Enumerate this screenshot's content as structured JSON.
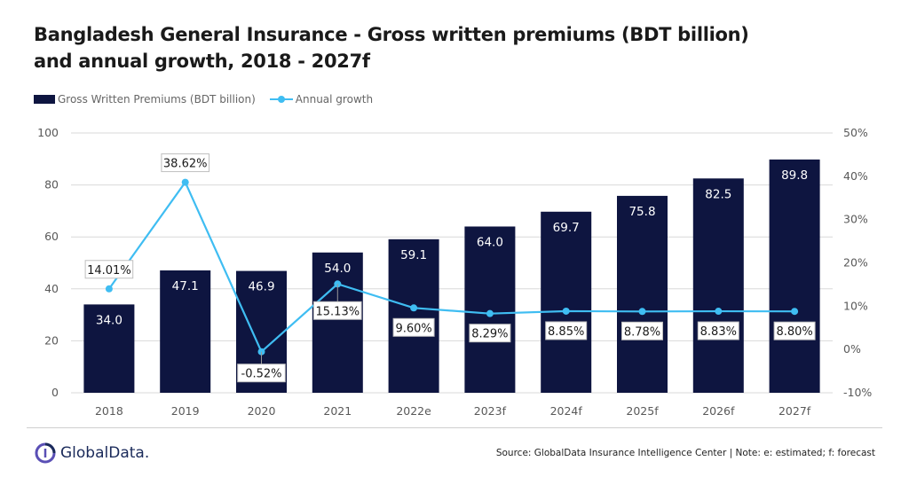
{
  "title": {
    "line1": "Bangladesh General Insurance - Gross written premiums (BDT billion)",
    "line2": "and annual growth, 2018 - 2027f"
  },
  "legend": {
    "bar_label": "Gross Written Premiums (BDT billion)",
    "line_label": "Annual growth"
  },
  "colors": {
    "bar": "#0e1540",
    "line": "#3fbdf2",
    "grid": "#d9d9d9",
    "axis_text": "#595959"
  },
  "footer": {
    "logo_text": "GlobalData.",
    "logo_icon": "globaldata-logo-icon",
    "source": "Source: GlobalData Insurance Intelligence Center | Note: e: estimated; f: forecast"
  },
  "chart_data": {
    "type": "bar",
    "categories": [
      "2018",
      "2019",
      "2020",
      "2021",
      "2022e",
      "2023f",
      "2024f",
      "2025f",
      "2026f",
      "2027f"
    ],
    "series": [
      {
        "name": "Gross Written Premiums (BDT billion)",
        "type": "bar",
        "axis": "left",
        "values": [
          34.0,
          47.1,
          46.9,
          54.0,
          59.1,
          64.0,
          69.7,
          75.8,
          82.5,
          89.8
        ],
        "labels": [
          "34.0",
          "47.1",
          "46.9",
          "54.0",
          "59.1",
          "64.0",
          "69.7",
          "75.8",
          "82.5",
          "89.8"
        ]
      },
      {
        "name": "Annual growth",
        "type": "line",
        "axis": "right",
        "values": [
          14.01,
          38.62,
          -0.52,
          15.13,
          9.6,
          8.29,
          8.85,
          8.78,
          8.83,
          8.8
        ],
        "labels": [
          "14.01%",
          "38.62%",
          "-0.52%",
          "15.13%",
          "9.60%",
          "8.29%",
          "8.85%",
          "8.78%",
          "8.83%",
          "8.80%"
        ]
      }
    ],
    "y_left": {
      "range": [
        0,
        100
      ],
      "ticks": [
        0,
        20,
        40,
        60,
        80,
        100
      ],
      "tick_labels": [
        "0",
        "20",
        "40",
        "60",
        "80",
        "100"
      ]
    },
    "y_right": {
      "range": [
        -10,
        50
      ],
      "ticks": [
        -10,
        0,
        10,
        20,
        30,
        40,
        50
      ],
      "tick_labels": [
        "-10%",
        "0%",
        "10%",
        "20%",
        "30%",
        "40%",
        "50%"
      ]
    },
    "grid": true,
    "legend_position": "top-left"
  }
}
